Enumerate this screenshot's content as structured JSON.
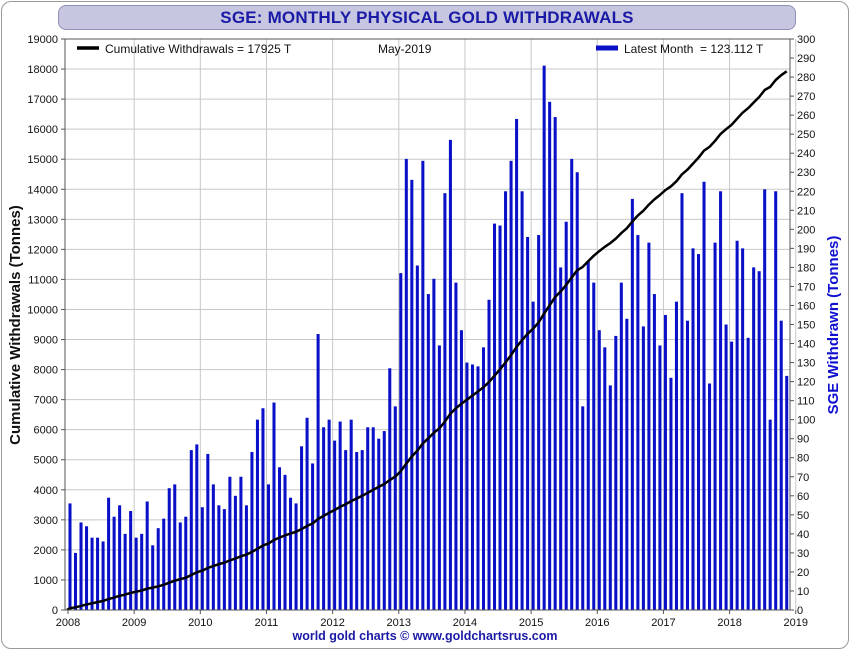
{
  "chart_data": {
    "type": "bar+line",
    "title": "SGE: MONTHLY PHYSICAL GOLD WITHDRAWALS",
    "period_label": "May-2019",
    "footer": "world gold charts © www.goldchartsrus.com",
    "legend_line": "Cumulative Withdrawals = 17925 T",
    "legend_bar": "Latest Month  = 123.112 T",
    "ylabel_left": "Cumulative Withdrawals (Tonnes)",
    "ylabel_right": "SGE Withdrawn (Tonnes)",
    "ylim_left": [
      0,
      19000
    ],
    "ylim_right": [
      0,
      300
    ],
    "yticks_left": [
      "0",
      "1000",
      "2000",
      "3000",
      "4000",
      "5000",
      "6000",
      "7000",
      "8000",
      "9000",
      "10000",
      "11000",
      "12000",
      "13000",
      "14000",
      "15000",
      "16000",
      "17000",
      "18000",
      "19000"
    ],
    "yticks_right": [
      "0",
      "10",
      "20",
      "30",
      "40",
      "50",
      "60",
      "70",
      "80",
      "90",
      "100",
      "110",
      "120",
      "130",
      "140",
      "150",
      "160",
      "170",
      "180",
      "190",
      "200",
      "210",
      "220",
      "230",
      "240",
      "250",
      "260",
      "270",
      "280",
      "290",
      "300"
    ],
    "x_years": [
      "2008",
      "2009",
      "2010",
      "2011",
      "2012",
      "2013",
      "2014",
      "2015",
      "2016",
      "2017",
      "2018",
      "2019"
    ],
    "grid": true,
    "legend_position": "top",
    "colors": {
      "bars": "#0a10c8",
      "line": "#000000",
      "title": "#1a1aa6",
      "right_axis_label": "#1010d0",
      "grid": "#c8c8c8"
    },
    "series": [
      {
        "name": "Latest Month",
        "type": "bar",
        "axis": "right",
        "start": "2008-01",
        "values": [
          56,
          30,
          46,
          44,
          38,
          38,
          36,
          59,
          49,
          55,
          40,
          52,
          38,
          40,
          57,
          34,
          43,
          48,
          64,
          66,
          46,
          49,
          84,
          87,
          54,
          82,
          66,
          55,
          53,
          70,
          60,
          70,
          55,
          83,
          100,
          106,
          66,
          109,
          75,
          71,
          59,
          56,
          86,
          101,
          77,
          145,
          96,
          100,
          89,
          99,
          84,
          100,
          83,
          84,
          96,
          96,
          90,
          94,
          127,
          107,
          177,
          237,
          226,
          181,
          236,
          166,
          174,
          139,
          219,
          247,
          172,
          147,
          130,
          129,
          128,
          138,
          163,
          203,
          202,
          220,
          236,
          258,
          220,
          196,
          162,
          197,
          286,
          267,
          259,
          180,
          204,
          237,
          230,
          107,
          183,
          172,
          147,
          138,
          118,
          144,
          172,
          153,
          216,
          197,
          149,
          193,
          166,
          139,
          155,
          122,
          162,
          219,
          152,
          190,
          187,
          225,
          119,
          193,
          220,
          150,
          141,
          194,
          190,
          143,
          180,
          178,
          221,
          100,
          220,
          152,
          123
        ]
      },
      {
        "name": "Cumulative Withdrawals",
        "type": "line",
        "axis": "left",
        "start": "2008-01",
        "last_value": 17925
      }
    ]
  }
}
